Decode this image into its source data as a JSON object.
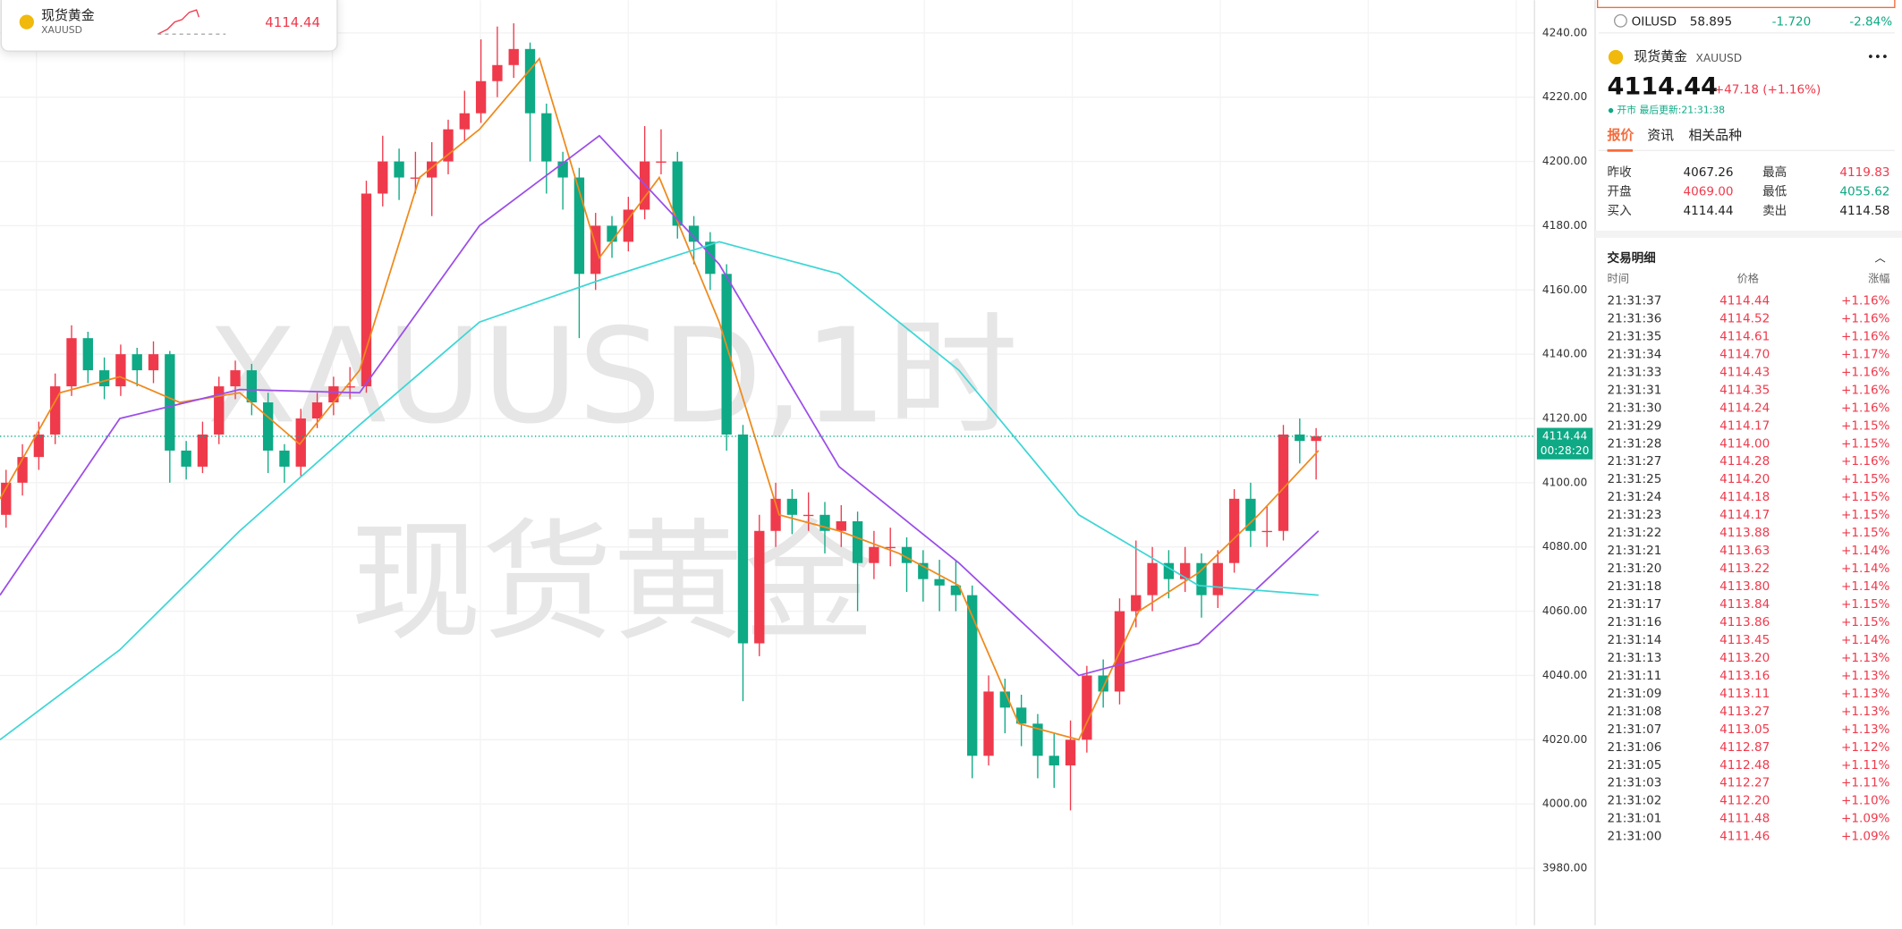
{
  "watch_card": {
    "name": "现货黄金",
    "symbol": "XAUUSD",
    "price": "4114.44"
  },
  "chart": {
    "watermark_top": "XAUUSD,1时",
    "watermark_bottom": "现货黄金",
    "ylim": [
      3970,
      4248
    ],
    "yticks": [
      {
        "value": 4240,
        "label": "4240.00"
      },
      {
        "value": 4220,
        "label": "4220.00"
      },
      {
        "value": 4200,
        "label": "4200.00"
      },
      {
        "value": 4180,
        "label": "4180.00"
      },
      {
        "value": 4160,
        "label": "4160.00"
      },
      {
        "value": 4140,
        "label": "4140.00"
      },
      {
        "value": 4120,
        "label": "4120.00"
      },
      {
        "value": 4100,
        "label": "4100.00"
      },
      {
        "value": 4080,
        "label": "4080.00"
      },
      {
        "value": 4060,
        "label": "4060.00"
      },
      {
        "value": 4040,
        "label": "4040.00"
      },
      {
        "value": 4020,
        "label": "4020.00"
      },
      {
        "value": 4000,
        "label": "4000.00"
      },
      {
        "value": 3980,
        "label": "3980.00"
      }
    ],
    "up_color": "#ef3a4c",
    "down_color": "#0ea985",
    "candles": [
      [
        4090,
        4104,
        4086,
        4100
      ],
      [
        4100,
        4112,
        4096,
        4108
      ],
      [
        4108,
        4119,
        4104,
        4115
      ],
      [
        4115,
        4134,
        4112,
        4130
      ],
      [
        4130,
        4149,
        4127,
        4145
      ],
      [
        4145,
        4147,
        4131,
        4135
      ],
      [
        4135,
        4139,
        4126,
        4130
      ],
      [
        4130,
        4143,
        4127,
        4140
      ],
      [
        4140,
        4142,
        4130,
        4135
      ],
      [
        4135,
        4144,
        4131,
        4140
      ],
      [
        4140,
        4141,
        4100,
        4110
      ],
      [
        4110,
        4113,
        4101,
        4105
      ],
      [
        4105,
        4119,
        4103,
        4115
      ],
      [
        4115,
        4133,
        4112,
        4130
      ],
      [
        4130,
        4138,
        4126,
        4135
      ],
      [
        4135,
        4137,
        4121,
        4125
      ],
      [
        4125,
        4128,
        4103,
        4110
      ],
      [
        4110,
        4112,
        4100,
        4105
      ],
      [
        4105,
        4123,
        4102,
        4120
      ],
      [
        4120,
        4128,
        4117,
        4125
      ],
      [
        4125,
        4133,
        4121,
        4130
      ],
      [
        4130,
        4136,
        4126,
        4130
      ],
      [
        4130,
        4194,
        4128,
        4190
      ],
      [
        4190,
        4208,
        4186,
        4200
      ],
      [
        4200,
        4204,
        4188,
        4195
      ],
      [
        4195,
        4203,
        4190,
        4195
      ],
      [
        4195,
        4206,
        4183,
        4200
      ],
      [
        4200,
        4213,
        4196,
        4210
      ],
      [
        4210,
        4222,
        4206,
        4215
      ],
      [
        4215,
        4238,
        4212,
        4225
      ],
      [
        4225,
        4242,
        4220,
        4230
      ],
      [
        4230,
        4243,
        4226,
        4235
      ],
      [
        4235,
        4237,
        4200,
        4215
      ],
      [
        4215,
        4218,
        4190,
        4200
      ],
      [
        4200,
        4203,
        4185,
        4195
      ],
      [
        4195,
        4198,
        4145,
        4165
      ],
      [
        4165,
        4184,
        4160,
        4180
      ],
      [
        4180,
        4183,
        4170,
        4175
      ],
      [
        4175,
        4189,
        4172,
        4185
      ],
      [
        4185,
        4211,
        4182,
        4200
      ],
      [
        4200,
        4210,
        4196,
        4200
      ],
      [
        4200,
        4203,
        4176,
        4180
      ],
      [
        4180,
        4183,
        4168,
        4175
      ],
      [
        4175,
        4178,
        4160,
        4165
      ],
      [
        4165,
        4168,
        4110,
        4115
      ],
      [
        4115,
        4118,
        4032,
        4050
      ],
      [
        4050,
        4090,
        4046,
        4085
      ],
      [
        4085,
        4100,
        4080,
        4095
      ],
      [
        4095,
        4098,
        4084,
        4090
      ],
      [
        4090,
        4097,
        4085,
        4090
      ],
      [
        4090,
        4094,
        4078,
        4085
      ],
      [
        4085,
        4093,
        4080,
        4088
      ],
      [
        4088,
        4091,
        4060,
        4075
      ],
      [
        4075,
        4085,
        4070,
        4080
      ],
      [
        4080,
        4086,
        4074,
        4080
      ],
      [
        4080,
        4083,
        4066,
        4075
      ],
      [
        4075,
        4079,
        4063,
        4070
      ],
      [
        4070,
        4076,
        4060,
        4068
      ],
      [
        4068,
        4076,
        4060,
        4065
      ],
      [
        4065,
        4068,
        4008,
        4015
      ],
      [
        4015,
        4040,
        4012,
        4035
      ],
      [
        4035,
        4039,
        4022,
        4030
      ],
      [
        4030,
        4034,
        4018,
        4025
      ],
      [
        4025,
        4028,
        4008,
        4015
      ],
      [
        4015,
        4022,
        4005,
        4012
      ],
      [
        4012,
        4026,
        3998,
        4020
      ],
      [
        4020,
        4043,
        4016,
        4040
      ],
      [
        4040,
        4045,
        4030,
        4035
      ],
      [
        4035,
        4064,
        4031,
        4060
      ],
      [
        4060,
        4082,
        4055,
        4065
      ],
      [
        4065,
        4080,
        4060,
        4075
      ],
      [
        4075,
        4079,
        4064,
        4070
      ],
      [
        4070,
        4080,
        4066,
        4075
      ],
      [
        4075,
        4078,
        4058,
        4065
      ],
      [
        4065,
        4079,
        4061,
        4075
      ],
      [
        4075,
        4098,
        4072,
        4095
      ],
      [
        4095,
        4100,
        4080,
        4085
      ],
      [
        4085,
        4093,
        4080,
        4085
      ],
      [
        4085,
        4118,
        4082,
        4115
      ],
      [
        4115,
        4120,
        4106,
        4113
      ],
      [
        4113,
        4117,
        4101,
        4114.44
      ]
    ],
    "ma_lines": [
      {
        "color": "#ef8a1c",
        "values": [
          4095,
          4128,
          4133,
          4125,
          4128,
          4112,
          4135,
          4195,
          4210,
          4232,
          4170,
          4195,
          4150,
          4090,
          4085,
          4078,
          4068,
          4025,
          4020,
          4060,
          4072,
          4090,
          4110
        ]
      },
      {
        "color": "#9b4dea",
        "values": [
          4065,
          4120,
          4129,
          4128,
          4180,
          4208,
          4168,
          4105,
          4075,
          4040,
          4050,
          4085
        ]
      },
      {
        "color": "#3fd6d6",
        "values": [
          4020,
          4048,
          4085,
          4118,
          4150,
          4163,
          4175,
          4165,
          4135,
          4090,
          4068,
          4065
        ]
      }
    ],
    "last_price": {
      "value": 4114.44,
      "label": "4114.44",
      "countdown": "00:28:20"
    }
  },
  "oil": {
    "symbol": "OILUSD",
    "price": "58.895",
    "change": "-1.720",
    "percent": "-2.84%"
  },
  "quote": {
    "name": "现货黄金",
    "symbol": "XAUUSD",
    "price": "4114.44",
    "change": "+47.18 (+1.16%)",
    "status": "开市 最后更新:21:31:38",
    "tabs": [
      "报价",
      "资讯",
      "相关品种"
    ],
    "stats": [
      [
        "昨收",
        "4067.26",
        "最高",
        "4119.83"
      ],
      [
        "开盘",
        "4069.00",
        "最低",
        "4055.62"
      ],
      [
        "买入",
        "4114.44",
        "卖出",
        "4114.58"
      ]
    ]
  },
  "trades": {
    "title": "交易明细",
    "headers": [
      "时间",
      "价格",
      "涨幅"
    ],
    "rows": [
      [
        "21:31:37",
        "4114.44",
        "+1.16%"
      ],
      [
        "21:31:36",
        "4114.52",
        "+1.16%"
      ],
      [
        "21:31:35",
        "4114.61",
        "+1.16%"
      ],
      [
        "21:31:34",
        "4114.70",
        "+1.17%"
      ],
      [
        "21:31:33",
        "4114.43",
        "+1.16%"
      ],
      [
        "21:31:31",
        "4114.35",
        "+1.16%"
      ],
      [
        "21:31:30",
        "4114.24",
        "+1.16%"
      ],
      [
        "21:31:29",
        "4114.17",
        "+1.15%"
      ],
      [
        "21:31:28",
        "4114.00",
        "+1.15%"
      ],
      [
        "21:31:27",
        "4114.28",
        "+1.16%"
      ],
      [
        "21:31:25",
        "4114.20",
        "+1.15%"
      ],
      [
        "21:31:24",
        "4114.18",
        "+1.15%"
      ],
      [
        "21:31:23",
        "4114.17",
        "+1.15%"
      ],
      [
        "21:31:22",
        "4113.88",
        "+1.15%"
      ],
      [
        "21:31:21",
        "4113.63",
        "+1.14%"
      ],
      [
        "21:31:20",
        "4113.22",
        "+1.14%"
      ],
      [
        "21:31:18",
        "4113.80",
        "+1.14%"
      ],
      [
        "21:31:17",
        "4113.84",
        "+1.15%"
      ],
      [
        "21:31:16",
        "4113.86",
        "+1.15%"
      ],
      [
        "21:31:14",
        "4113.45",
        "+1.14%"
      ],
      [
        "21:31:13",
        "4113.20",
        "+1.13%"
      ],
      [
        "21:31:11",
        "4113.16",
        "+1.13%"
      ],
      [
        "21:31:09",
        "4113.11",
        "+1.13%"
      ],
      [
        "21:31:08",
        "4113.27",
        "+1.13%"
      ],
      [
        "21:31:07",
        "4113.05",
        "+1.13%"
      ],
      [
        "21:31:06",
        "4112.87",
        "+1.12%"
      ],
      [
        "21:31:05",
        "4112.48",
        "+1.11%"
      ],
      [
        "21:31:03",
        "4112.27",
        "+1.11%"
      ],
      [
        "21:31:02",
        "4112.20",
        "+1.10%"
      ],
      [
        "21:31:01",
        "4111.48",
        "+1.09%"
      ],
      [
        "21:31:00",
        "4111.46",
        "+1.09%"
      ]
    ]
  }
}
